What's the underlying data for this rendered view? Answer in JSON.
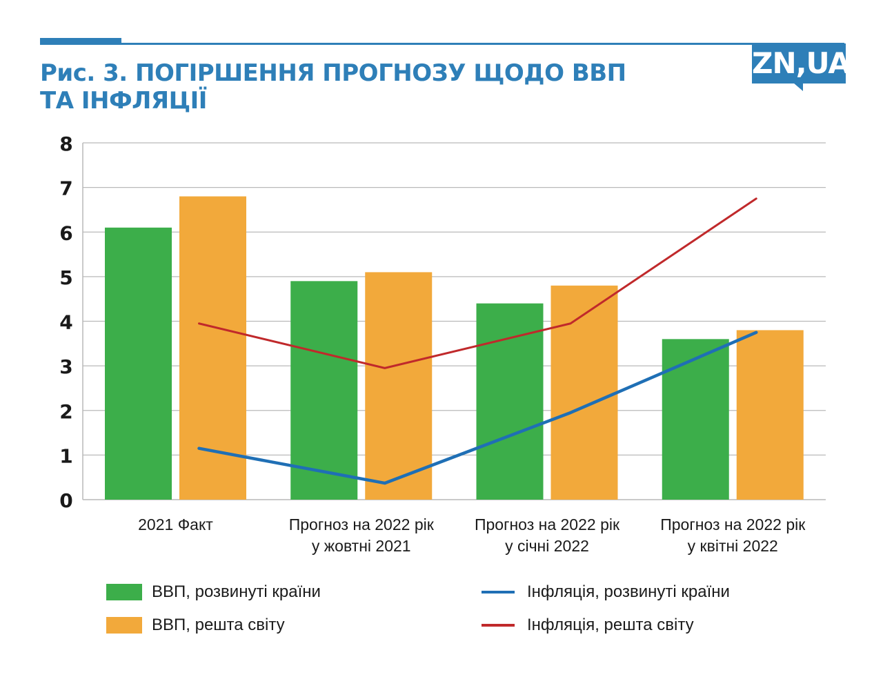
{
  "title": {
    "line1": "Рис. 3. ПОГІРШЕННЯ ПРОГНОЗУ ЩОДО ВВП",
    "line2": "ТА ІНФЛЯЦІЇ"
  },
  "logo": {
    "text": "ZN,UA"
  },
  "colors": {
    "accent": "#2e7fb8",
    "gdp_developed": "#3cae4a",
    "gdp_rest": "#f2a93b",
    "infl_developed": "#1f6fb5",
    "infl_rest": "#c0292b",
    "grid": "#b9b9b9"
  },
  "chart_data": {
    "type": "bar",
    "categories": [
      [
        "2021 Факт"
      ],
      [
        "Прогноз на 2022 рік",
        "у жовтні 2021"
      ],
      [
        "Прогноз на 2022 рік",
        "у січні 2022"
      ],
      [
        "Прогноз на 2022 рік",
        "у квітні 2022"
      ]
    ],
    "ylim": [
      0,
      8
    ],
    "yticks": [
      "0",
      "1",
      "2",
      "3",
      "4",
      "5",
      "6",
      "7",
      "8"
    ],
    "grid": true,
    "legend_position": "bottom",
    "series": [
      {
        "name": "ВВП, розвинуті країни",
        "kind": "bar",
        "color": "#3cae4a",
        "values": [
          6.1,
          4.9,
          4.4,
          3.6
        ]
      },
      {
        "name": "ВВП, решта світу",
        "kind": "bar",
        "color": "#f2a93b",
        "values": [
          6.8,
          5.1,
          4.8,
          3.8
        ]
      },
      {
        "name": "Інфляція, розвинуті країни",
        "kind": "line",
        "color": "#1f6fb5",
        "values": [
          1.15,
          0.37,
          1.95,
          3.75
        ]
      },
      {
        "name": "Інфляція, решта світу",
        "kind": "line",
        "color": "#c0292b",
        "values": [
          3.95,
          2.95,
          3.95,
          6.75
        ]
      }
    ]
  }
}
